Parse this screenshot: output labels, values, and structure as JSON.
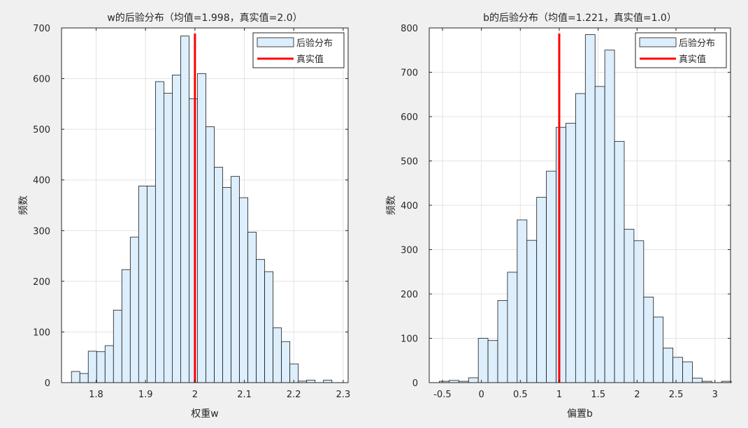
{
  "figure": {
    "background": "#f0f0f0"
  },
  "chart_data": [
    {
      "type": "bar",
      "subtype": "histogram",
      "title": "w的后验分布（均值=1.998，真实值=2.0）",
      "xlabel": "权重w",
      "ylabel": "频数",
      "xlim": [
        1.73,
        2.31
      ],
      "ylim": [
        0,
        700
      ],
      "xticks": [
        1.8,
        1.9,
        2,
        2.1,
        2.2,
        2.3
      ],
      "xtick_labels": [
        "1.8",
        "1.9",
        "2",
        "2.1",
        "2.2",
        "2.3"
      ],
      "yticks": [
        0,
        100,
        200,
        300,
        400,
        500,
        600,
        700
      ],
      "ytick_labels": [
        "0",
        "100",
        "200",
        "300",
        "400",
        "500",
        "600",
        "700"
      ],
      "bin_start": 1.7501,
      "bin_width": 0.017,
      "values": [
        22,
        18,
        62,
        61,
        73,
        143,
        223,
        287,
        388,
        388,
        594,
        571,
        607,
        684,
        560,
        610,
        505,
        425,
        385,
        407,
        365,
        297,
        243,
        219,
        108,
        81,
        37,
        3,
        5,
        0,
        5
      ],
      "true_value": 2.0,
      "grid": true,
      "legend": {
        "position": "top-right",
        "entries": [
          "后验分布",
          "真实值"
        ]
      },
      "colors": {
        "bar_fill": "#ddeefc",
        "bar_edge": "#1a1a1a",
        "true_line": "#ff0000"
      }
    },
    {
      "type": "bar",
      "subtype": "histogram",
      "title": "b的后验分布（均值=1.221，真实值=1.0）",
      "xlabel": "偏置b",
      "ylabel": "频数",
      "xlim": [
        -0.67,
        3.2
      ],
      "ylim": [
        0,
        800
      ],
      "xticks": [
        -0.5,
        0,
        0.5,
        1,
        1.5,
        2,
        2.5,
        3
      ],
      "xtick_labels": [
        "-0.5",
        "0",
        "0.5",
        "1",
        "1.5",
        "2",
        "2.5",
        "3"
      ],
      "yticks": [
        0,
        100,
        200,
        300,
        400,
        500,
        600,
        700,
        800
      ],
      "ytick_labels": [
        "0",
        "100",
        "200",
        "300",
        "400",
        "500",
        "600",
        "700",
        "800"
      ],
      "bin_start": -0.54,
      "bin_width": 0.125,
      "values": [
        3,
        5,
        3,
        11,
        100,
        95,
        185,
        249,
        367,
        321,
        418,
        477,
        576,
        585,
        652,
        785,
        668,
        750,
        544,
        346,
        320,
        193,
        148,
        78,
        57,
        47,
        10,
        3,
        0,
        3
      ],
      "true_value": 1.0,
      "grid": true,
      "legend": {
        "position": "top-right",
        "entries": [
          "后验分布",
          "真实值"
        ]
      },
      "colors": {
        "bar_fill": "#ddeefc",
        "bar_edge": "#1a1a1a",
        "true_line": "#ff0000"
      }
    }
  ]
}
